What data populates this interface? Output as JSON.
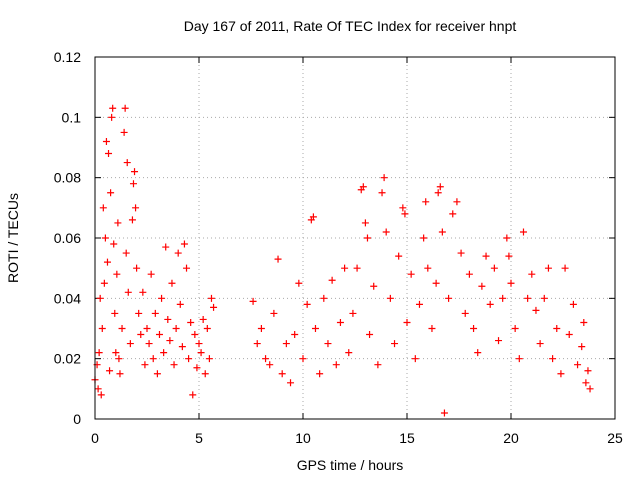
{
  "chart_data": {
    "type": "scatter",
    "title": "Day 167 of 2011, Rate Of TEC Index for receiver hnpt",
    "xlabel": "GPS time / hours",
    "ylabel": "ROTI / TECUs",
    "xlim": [
      0,
      25
    ],
    "ylim": [
      0,
      0.12
    ],
    "x_ticks": [
      "0",
      "5",
      "10",
      "15",
      "20",
      "25"
    ],
    "y_ticks": [
      "0",
      "0.02",
      "0.04",
      "0.06",
      "0.08",
      "0.1",
      "0.12"
    ],
    "grid": true,
    "marker": "+",
    "series": [
      {
        "color": "#ff0000",
        "points": [
          [
            0.0,
            0.013
          ],
          [
            0.1,
            0.018
          ],
          [
            0.15,
            0.01
          ],
          [
            0.2,
            0.022
          ],
          [
            0.25,
            0.04
          ],
          [
            0.3,
            0.008
          ],
          [
            0.35,
            0.03
          ],
          [
            0.4,
            0.07
          ],
          [
            0.45,
            0.045
          ],
          [
            0.5,
            0.06
          ],
          [
            0.55,
            0.092
          ],
          [
            0.6,
            0.052
          ],
          [
            0.65,
            0.088
          ],
          [
            0.7,
            0.016
          ],
          [
            0.75,
            0.075
          ],
          [
            0.8,
            0.1
          ],
          [
            0.85,
            0.103
          ],
          [
            0.9,
            0.058
          ],
          [
            0.95,
            0.035
          ],
          [
            1.0,
            0.022
          ],
          [
            1.05,
            0.048
          ],
          [
            1.1,
            0.065
          ],
          [
            1.15,
            0.02
          ],
          [
            1.2,
            0.015
          ],
          [
            1.3,
            0.03
          ],
          [
            1.4,
            0.095
          ],
          [
            1.45,
            0.103
          ],
          [
            1.5,
            0.055
          ],
          [
            1.55,
            0.085
          ],
          [
            1.6,
            0.042
          ],
          [
            1.7,
            0.025
          ],
          [
            1.8,
            0.066
          ],
          [
            1.85,
            0.078
          ],
          [
            1.9,
            0.082
          ],
          [
            1.95,
            0.07
          ],
          [
            2.0,
            0.05
          ],
          [
            2.1,
            0.035
          ],
          [
            2.2,
            0.028
          ],
          [
            2.3,
            0.042
          ],
          [
            2.4,
            0.018
          ],
          [
            2.5,
            0.03
          ],
          [
            2.6,
            0.025
          ],
          [
            2.7,
            0.048
          ],
          [
            2.8,
            0.02
          ],
          [
            2.9,
            0.035
          ],
          [
            3.0,
            0.015
          ],
          [
            3.1,
            0.028
          ],
          [
            3.2,
            0.04
          ],
          [
            3.3,
            0.022
          ],
          [
            3.4,
            0.057
          ],
          [
            3.5,
            0.033
          ],
          [
            3.6,
            0.026
          ],
          [
            3.7,
            0.045
          ],
          [
            3.8,
            0.018
          ],
          [
            3.9,
            0.03
          ],
          [
            4.0,
            0.055
          ],
          [
            4.1,
            0.038
          ],
          [
            4.2,
            0.024
          ],
          [
            4.3,
            0.058
          ],
          [
            4.4,
            0.05
          ],
          [
            4.5,
            0.02
          ],
          [
            4.6,
            0.032
          ],
          [
            4.7,
            0.008
          ],
          [
            4.8,
            0.028
          ],
          [
            4.9,
            0.017
          ],
          [
            5.0,
            0.025
          ],
          [
            5.1,
            0.022
          ],
          [
            5.2,
            0.033
          ],
          [
            5.3,
            0.015
          ],
          [
            5.4,
            0.03
          ],
          [
            5.5,
            0.02
          ],
          [
            5.6,
            0.04
          ],
          [
            5.7,
            0.037
          ],
          [
            7.6,
            0.039
          ],
          [
            7.8,
            0.025
          ],
          [
            8.0,
            0.03
          ],
          [
            8.2,
            0.02
          ],
          [
            8.4,
            0.018
          ],
          [
            8.6,
            0.035
          ],
          [
            8.8,
            0.053
          ],
          [
            9.0,
            0.015
          ],
          [
            9.2,
            0.025
          ],
          [
            9.4,
            0.012
          ],
          [
            9.6,
            0.028
          ],
          [
            9.8,
            0.045
          ],
          [
            10.0,
            0.02
          ],
          [
            10.2,
            0.038
          ],
          [
            10.4,
            0.066
          ],
          [
            10.5,
            0.067
          ],
          [
            10.6,
            0.03
          ],
          [
            10.8,
            0.015
          ],
          [
            11.0,
            0.04
          ],
          [
            11.2,
            0.025
          ],
          [
            11.4,
            0.046
          ],
          [
            11.6,
            0.018
          ],
          [
            11.8,
            0.032
          ],
          [
            12.0,
            0.05
          ],
          [
            12.2,
            0.022
          ],
          [
            12.4,
            0.035
          ],
          [
            12.6,
            0.05
          ],
          [
            12.8,
            0.076
          ],
          [
            12.9,
            0.077
          ],
          [
            13.0,
            0.065
          ],
          [
            13.1,
            0.06
          ],
          [
            13.2,
            0.028
          ],
          [
            13.4,
            0.044
          ],
          [
            13.6,
            0.018
          ],
          [
            13.8,
            0.075
          ],
          [
            13.9,
            0.08
          ],
          [
            14.0,
            0.062
          ],
          [
            14.2,
            0.04
          ],
          [
            14.4,
            0.025
          ],
          [
            14.6,
            0.054
          ],
          [
            14.8,
            0.07
          ],
          [
            14.9,
            0.068
          ],
          [
            15.0,
            0.032
          ],
          [
            15.2,
            0.048
          ],
          [
            15.4,
            0.02
          ],
          [
            15.6,
            0.038
          ],
          [
            15.8,
            0.06
          ],
          [
            15.9,
            0.072
          ],
          [
            16.0,
            0.05
          ],
          [
            16.2,
            0.03
          ],
          [
            16.4,
            0.045
          ],
          [
            16.5,
            0.075
          ],
          [
            16.6,
            0.077
          ],
          [
            16.7,
            0.062
          ],
          [
            16.8,
            0.002
          ],
          [
            17.0,
            0.04
          ],
          [
            17.2,
            0.068
          ],
          [
            17.4,
            0.072
          ],
          [
            17.6,
            0.055
          ],
          [
            17.8,
            0.035
          ],
          [
            18.0,
            0.048
          ],
          [
            18.2,
            0.03
          ],
          [
            18.4,
            0.022
          ],
          [
            18.6,
            0.044
          ],
          [
            18.8,
            0.054
          ],
          [
            19.0,
            0.038
          ],
          [
            19.2,
            0.05
          ],
          [
            19.4,
            0.026
          ],
          [
            19.6,
            0.04
          ],
          [
            19.8,
            0.06
          ],
          [
            19.9,
            0.054
          ],
          [
            20.0,
            0.045
          ],
          [
            20.2,
            0.03
          ],
          [
            20.4,
            0.02
          ],
          [
            20.6,
            0.062
          ],
          [
            20.8,
            0.04
          ],
          [
            21.0,
            0.048
          ],
          [
            21.2,
            0.036
          ],
          [
            21.4,
            0.025
          ],
          [
            21.6,
            0.04
          ],
          [
            21.8,
            0.05
          ],
          [
            22.0,
            0.02
          ],
          [
            22.2,
            0.03
          ],
          [
            22.4,
            0.015
          ],
          [
            22.6,
            0.05
          ],
          [
            22.8,
            0.028
          ],
          [
            23.0,
            0.038
          ],
          [
            23.2,
            0.018
          ],
          [
            23.4,
            0.024
          ],
          [
            23.5,
            0.032
          ],
          [
            23.6,
            0.012
          ],
          [
            23.7,
            0.016
          ],
          [
            23.8,
            0.01
          ]
        ]
      }
    ]
  }
}
